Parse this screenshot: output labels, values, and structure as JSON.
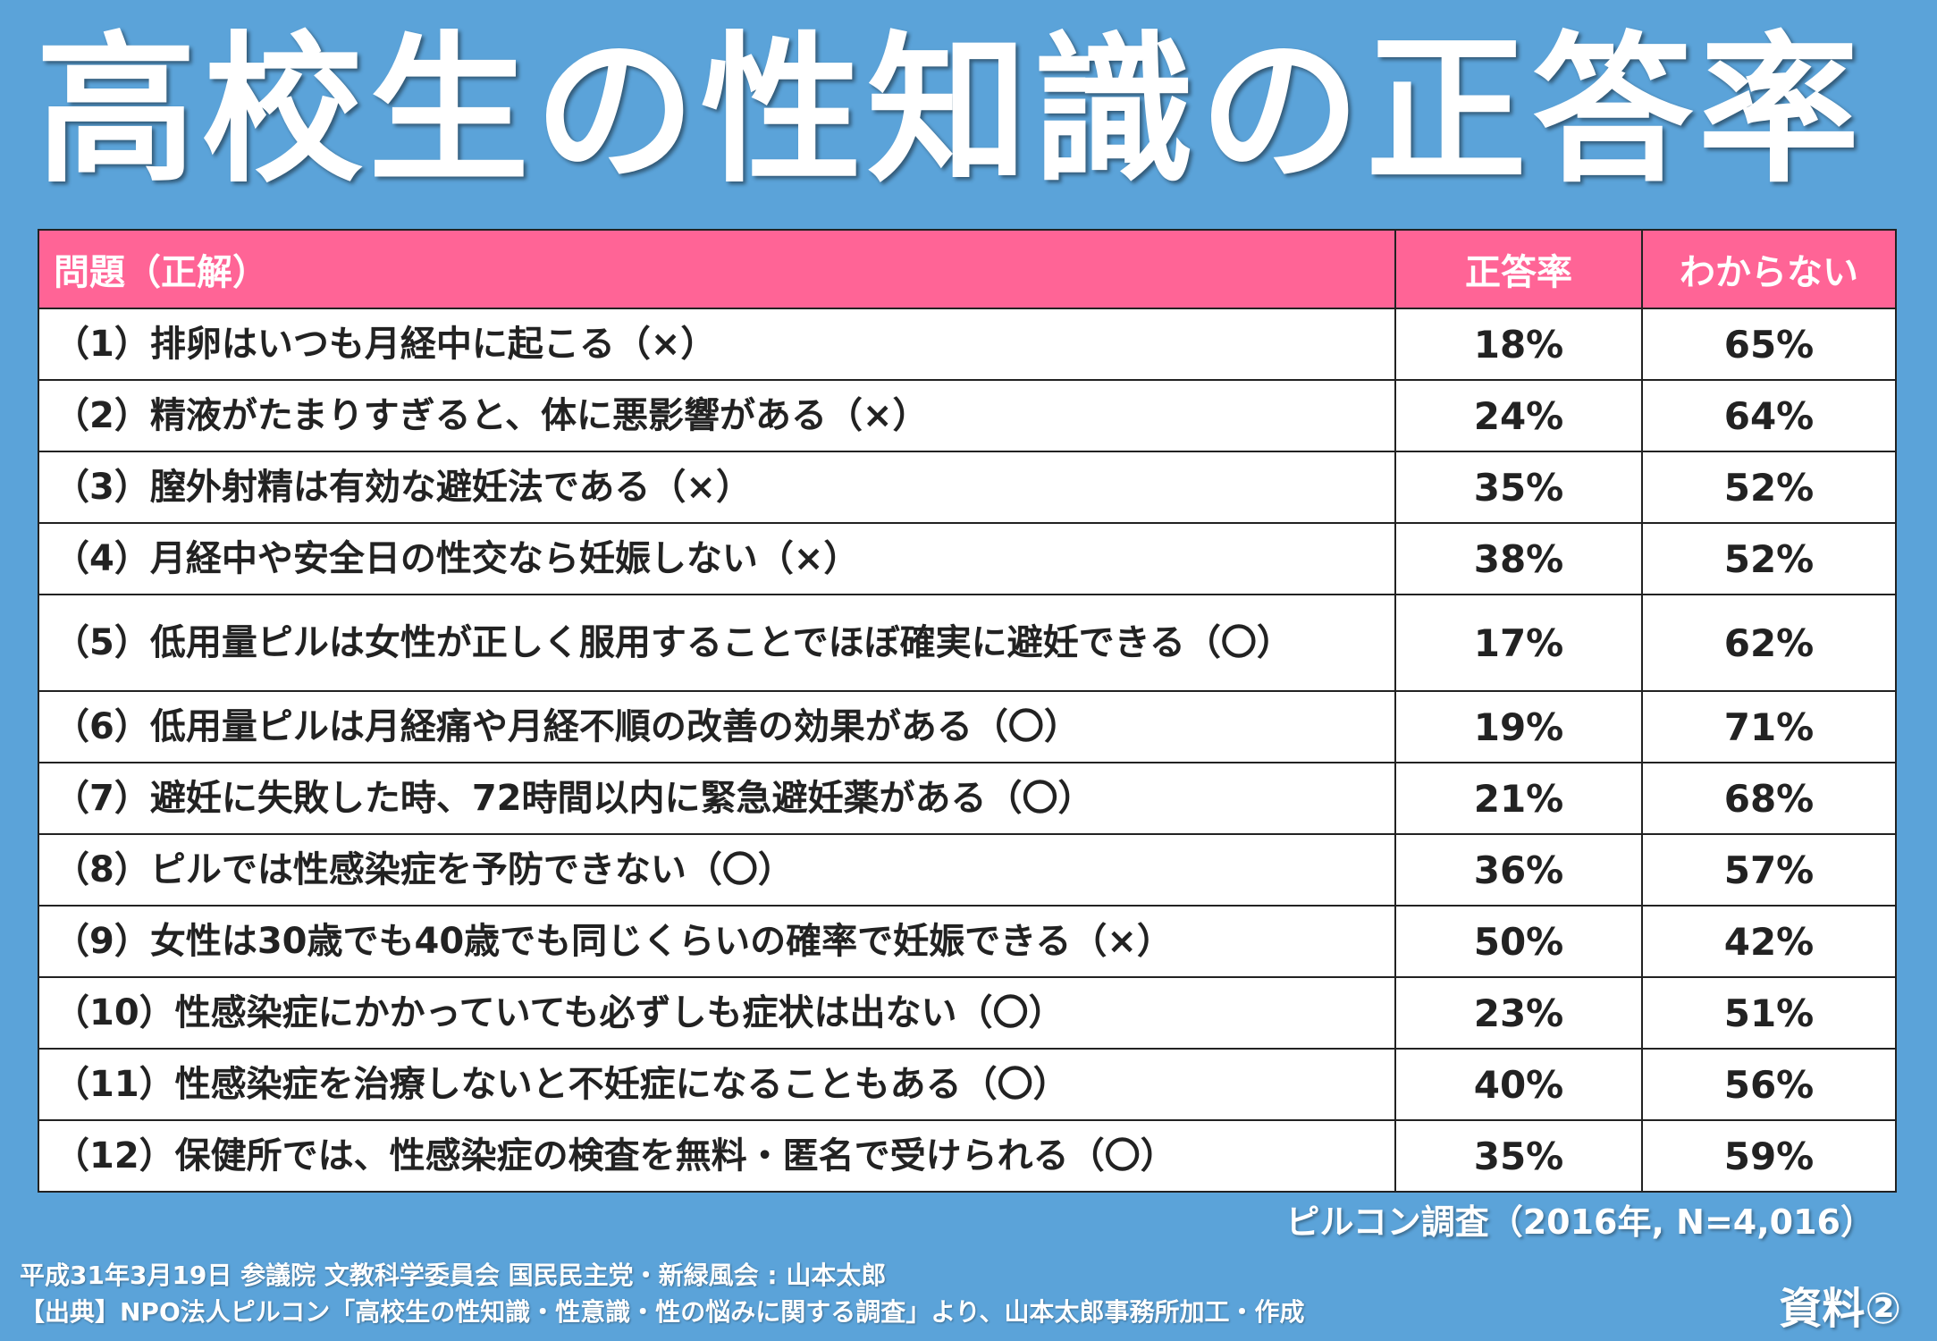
{
  "title": "高校生の性知識の正答率",
  "chart_data": {
    "type": "table",
    "columns": [
      "問題（正解）",
      "正答率",
      "わからない"
    ],
    "rows": [
      {
        "question": "（1）排卵はいつも月経中に起こる（×）",
        "correct_rate": "18%",
        "unknown": "65%"
      },
      {
        "question": "（2）精液がたまりすぎると、体に悪影響がある（×）",
        "correct_rate": "24%",
        "unknown": "64%"
      },
      {
        "question": "（3）膣外射精は有効な避妊法である（×）",
        "correct_rate": "35%",
        "unknown": "52%"
      },
      {
        "question": "（4）月経中や安全日の性交なら妊娠しない（×）",
        "correct_rate": "38%",
        "unknown": "52%"
      },
      {
        "question": "（5）低用量ピルは女性が正しく服用することでほぼ確実に避妊できる（〇）",
        "correct_rate": "17%",
        "unknown": "62%"
      },
      {
        "question": "（6）低用量ピルは月経痛や月経不順の改善の効果がある（〇）",
        "correct_rate": "19%",
        "unknown": "71%"
      },
      {
        "question": "（7）避妊に失敗した時、72時間以内に緊急避妊薬がある（〇）",
        "correct_rate": "21%",
        "unknown": "68%"
      },
      {
        "question": "（8）ピルでは性感染症を予防できない（〇）",
        "correct_rate": "36%",
        "unknown": "57%"
      },
      {
        "question": "（9）女性は30歳でも40歳でも同じくらいの確率で妊娠できる（×）",
        "correct_rate": "50%",
        "unknown": "42%"
      },
      {
        "question": "（10）性感染症にかかっていても必ずしも症状は出ない（〇）",
        "correct_rate": "23%",
        "unknown": "51%"
      },
      {
        "question": "（11）性感染症を治療しないと不妊症になることもある（〇）",
        "correct_rate": "40%",
        "unknown": "56%"
      },
      {
        "question": "（12）保健所では、性感染症の検査を無料・匿名で受けられる（〇）",
        "correct_rate": "35%",
        "unknown": "59%"
      }
    ]
  },
  "source": "ピルコン調査（2016年, N=4,016）",
  "footer_line1": "平成31年3月19日 参議院 文教科学委員会 国民民主党・新緑風会 : 山本太郎",
  "footer_line2": "【出典】NPO法人ピルコン「高校生の性知識・性意識・性の悩みに関する調査」より、山本太郎事務所加工・作成",
  "doc_label": "資料②",
  "colors": {
    "background": "#5ba3d9",
    "header": "#ff6496",
    "cell": "#ffffff",
    "border": "#222222"
  }
}
